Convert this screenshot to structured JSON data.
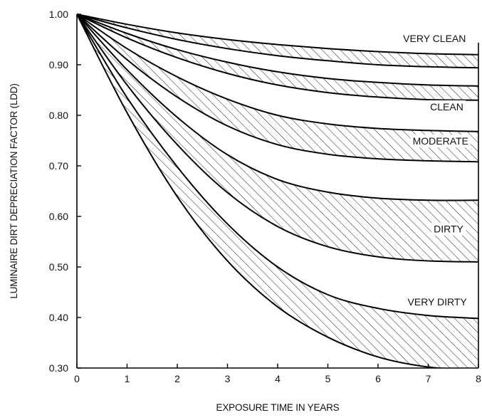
{
  "chart_data": {
    "type": "area",
    "xlabel": "EXPOSURE TIME IN YEARS",
    "ylabel": "LUMINAIRE DIRT DEPRECIATION FACTOR (LDD)",
    "xlim": [
      0,
      8
    ],
    "ylim": [
      0.3,
      1.0
    ],
    "x_ticks": [
      "0",
      "1",
      "2",
      "3",
      "4",
      "5",
      "6",
      "7",
      "8"
    ],
    "y_ticks": [
      "0.30",
      "0.40",
      "0.50",
      "0.60",
      "0.70",
      "0.80",
      "0.90",
      "1.00"
    ],
    "grid": false,
    "x": [
      0,
      1,
      2,
      3,
      4,
      5,
      6,
      7,
      8
    ],
    "series": [
      {
        "name": "VERY CLEAN",
        "upper": [
          1.0,
          0.98,
          0.963,
          0.95,
          0.94,
          0.932,
          0.926,
          0.922,
          0.92
        ],
        "lower": [
          1.0,
          0.973,
          0.95,
          0.932,
          0.918,
          0.908,
          0.9,
          0.896,
          0.894
        ]
      },
      {
        "name": "CLEAN",
        "upper": [
          1.0,
          0.962,
          0.93,
          0.905,
          0.886,
          0.873,
          0.865,
          0.86,
          0.858
        ],
        "lower": [
          1.0,
          0.953,
          0.914,
          0.883,
          0.86,
          0.845,
          0.836,
          0.831,
          0.83
        ]
      },
      {
        "name": "MODERATE",
        "upper": [
          1.0,
          0.932,
          0.876,
          0.832,
          0.8,
          0.783,
          0.774,
          0.77,
          0.768
        ],
        "lower": [
          1.0,
          0.91,
          0.836,
          0.779,
          0.742,
          0.723,
          0.714,
          0.71,
          0.708
        ]
      },
      {
        "name": "DIRTY",
        "upper": [
          1.0,
          0.89,
          0.796,
          0.722,
          0.673,
          0.648,
          0.636,
          0.632,
          0.632
        ],
        "lower": [
          1.0,
          0.86,
          0.742,
          0.647,
          0.58,
          0.54,
          0.52,
          0.512,
          0.51
        ]
      },
      {
        "name": "VERY DIRTY",
        "upper": [
          1.0,
          0.835,
          0.698,
          0.585,
          0.5,
          0.445,
          0.418,
          0.404,
          0.398
        ],
        "lower": [
          1.0,
          0.805,
          0.639,
          0.512,
          0.421,
          0.361,
          0.322,
          0.302,
          0.296
        ]
      }
    ]
  }
}
